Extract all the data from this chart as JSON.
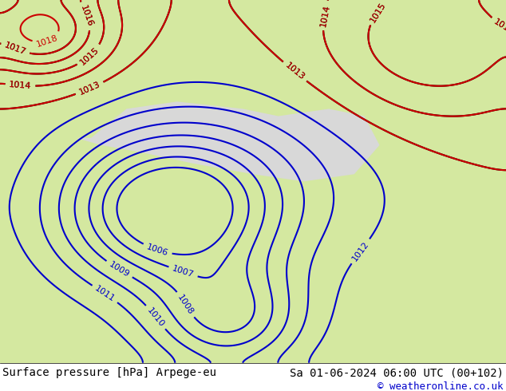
{
  "title_left": "Surface pressure [hPa] Arpege-eu",
  "title_right": "Sa 01-06-2024 06:00 UTC (00+102)",
  "copyright": "© weatheronline.co.uk",
  "bg_color": "#d4e8a0",
  "land_color": "#c8e888",
  "sea_color": "#e8e8e8",
  "black_contour_color": "#000000",
  "blue_contour_color": "#0000cc",
  "red_contour_color": "#cc0000",
  "gray_contour_color": "#888888",
  "footer_bg": "#ffffff",
  "footer_text_color": "#000000",
  "copyright_color": "#0000cc",
  "fig_width": 6.34,
  "fig_height": 4.9,
  "dpi": 100
}
